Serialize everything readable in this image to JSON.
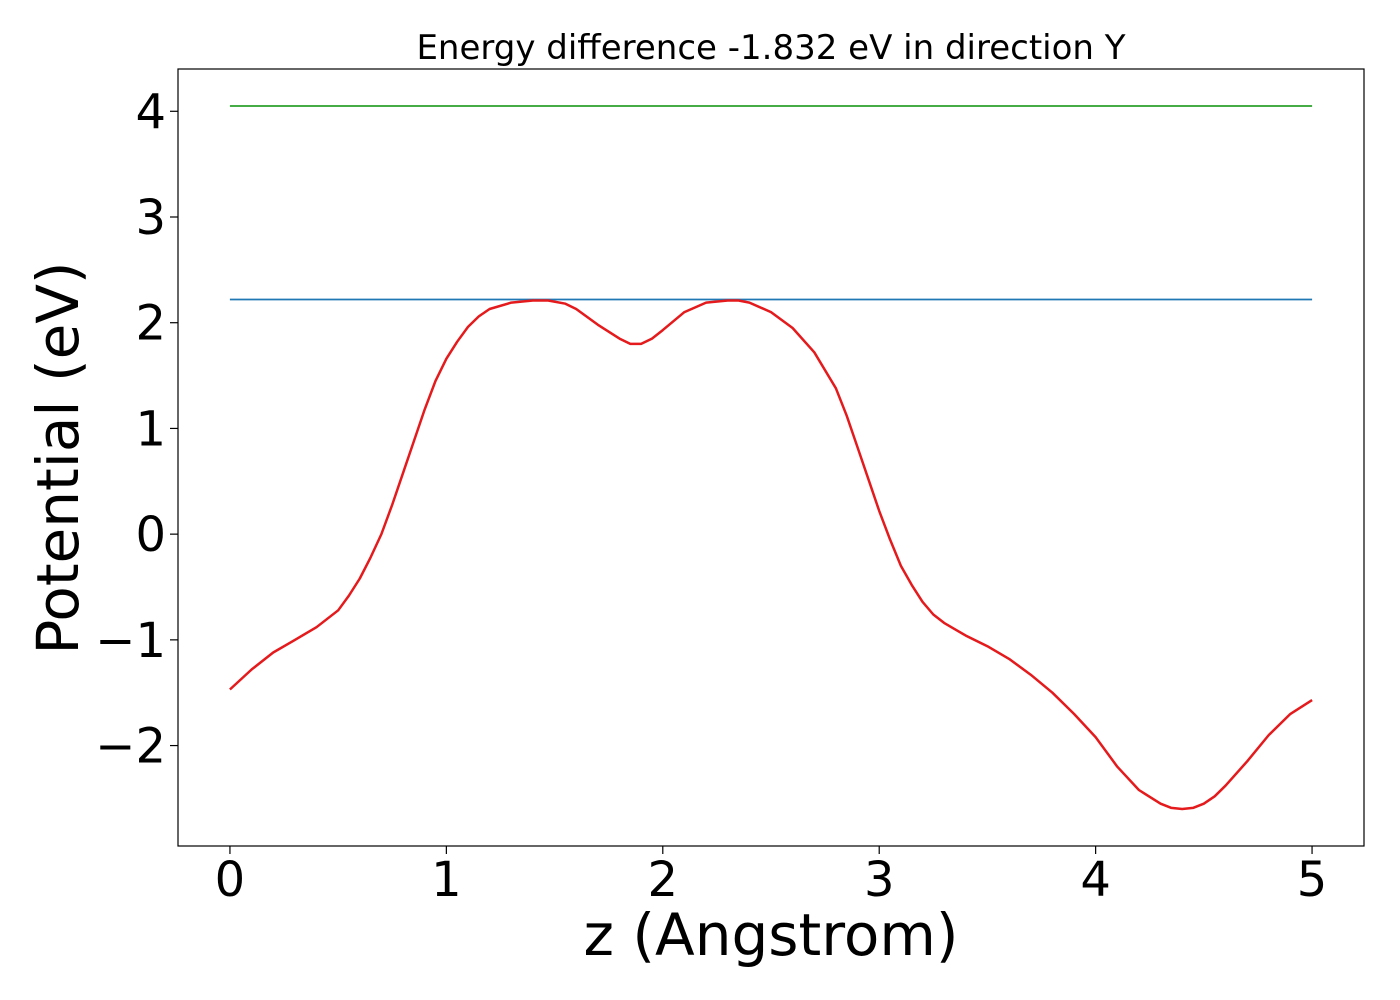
{
  "chart_data": {
    "type": "line",
    "title": "Energy difference -1.832 eV in direction Y",
    "xlabel": "z (Angstrom)",
    "ylabel": "Potential (eV)",
    "xlim": [
      -0.24,
      5.24
    ],
    "ylim": [
      -2.95,
      4.4
    ],
    "xticks": [
      0,
      1,
      2,
      3,
      4,
      5
    ],
    "xtick_labels": [
      "0",
      "1",
      "2",
      "3",
      "4",
      "5"
    ],
    "yticks": [
      -2,
      -1,
      0,
      1,
      2,
      3,
      4
    ],
    "ytick_labels": [
      "−2",
      "−1",
      "0",
      "1",
      "2",
      "3",
      "4"
    ],
    "grid": false,
    "series": [
      {
        "color": "#2ca02c",
        "x": [
          0,
          5
        ],
        "y": [
          4.05,
          4.05
        ]
      },
      {
        "color": "#1f77b4",
        "x": [
          0,
          5
        ],
        "y": [
          2.22,
          2.22
        ]
      },
      {
        "color": "#e41a1c",
        "x": [
          0,
          0.1,
          0.2,
          0.3,
          0.4,
          0.5,
          0.55,
          0.6,
          0.65,
          0.7,
          0.75,
          0.8,
          0.85,
          0.9,
          0.95,
          1.0,
          1.05,
          1.1,
          1.15,
          1.2,
          1.3,
          1.4,
          1.47,
          1.55,
          1.6,
          1.7,
          1.8,
          1.85,
          1.9,
          1.95,
          2.0,
          2.1,
          2.2,
          2.3,
          2.35,
          2.4,
          2.5,
          2.6,
          2.7,
          2.8,
          2.85,
          2.9,
          2.95,
          3.0,
          3.05,
          3.1,
          3.15,
          3.2,
          3.25,
          3.3,
          3.35,
          3.4,
          3.5,
          3.6,
          3.7,
          3.8,
          3.9,
          4.0,
          4.1,
          4.2,
          4.3,
          4.35,
          4.4,
          4.45,
          4.5,
          4.55,
          4.6,
          4.7,
          4.8,
          4.9,
          5.0
        ],
        "y": [
          -1.47,
          -1.28,
          -1.12,
          -1.0,
          -0.88,
          -0.72,
          -0.58,
          -0.42,
          -0.22,
          0.0,
          0.28,
          0.58,
          0.88,
          1.18,
          1.45,
          1.66,
          1.82,
          1.96,
          2.06,
          2.13,
          2.19,
          2.21,
          2.21,
          2.18,
          2.13,
          1.98,
          1.85,
          1.8,
          1.8,
          1.85,
          1.93,
          2.1,
          2.19,
          2.21,
          2.21,
          2.19,
          2.1,
          1.95,
          1.72,
          1.38,
          1.12,
          0.82,
          0.52,
          0.22,
          -0.05,
          -0.3,
          -0.48,
          -0.64,
          -0.76,
          -0.84,
          -0.9,
          -0.96,
          -1.06,
          -1.18,
          -1.33,
          -1.5,
          -1.7,
          -1.92,
          -2.2,
          -2.42,
          -2.55,
          -2.59,
          -2.6,
          -2.59,
          -2.55,
          -2.48,
          -2.38,
          -2.15,
          -1.9,
          -1.7,
          -1.57
        ]
      }
    ]
  }
}
